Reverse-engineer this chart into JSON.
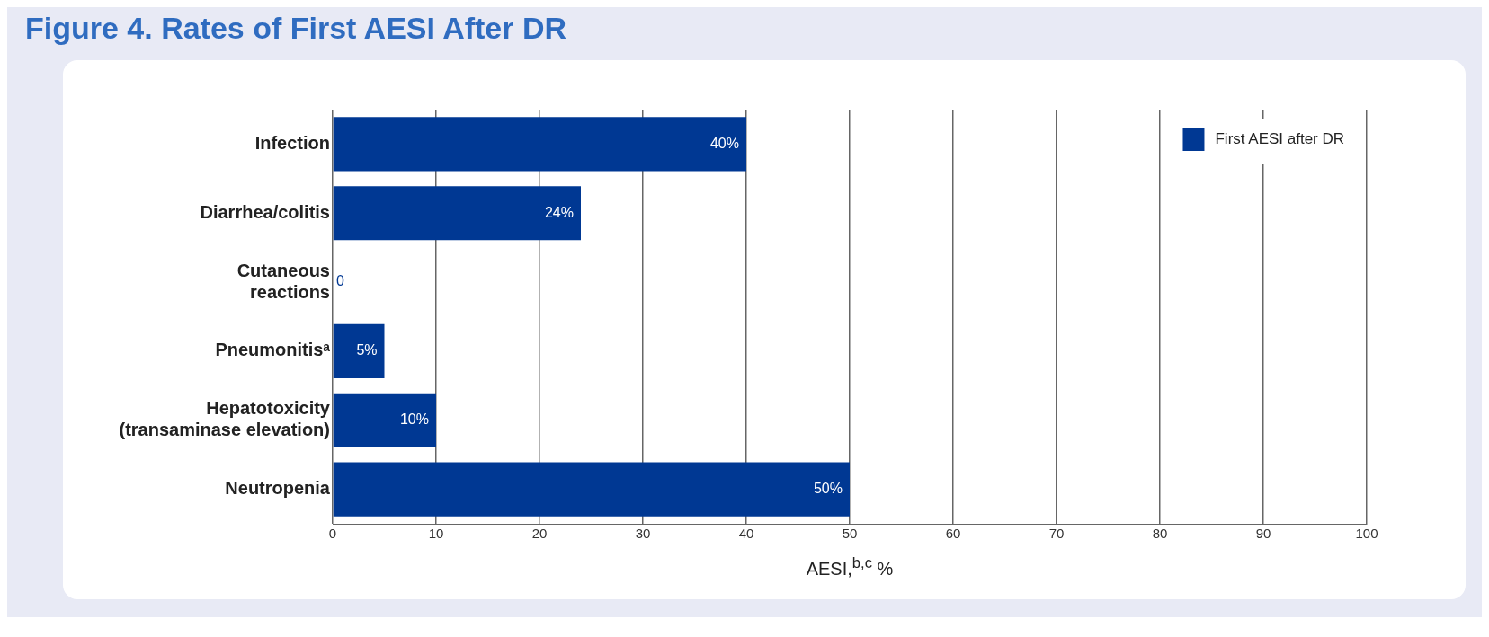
{
  "chart_data": {
    "type": "bar",
    "orientation": "horizontal",
    "title": "Figure 4. Rates of First AESI After DR",
    "xlabel": "AESI,$^{b,c}$ %",
    "categories": [
      "Infection",
      "Diarrhea/colitis",
      "Cutaneous\nreactions",
      "Pneumonitisᵃ",
      "Hepatotoxicity\n(transaminase elevation)",
      "Neutropenia"
    ],
    "series": [
      {
        "name": "First AESI after DR",
        "color": "#003893",
        "values": [
          40,
          24,
          0,
          5,
          10,
          50
        ],
        "value_labels": [
          "40%",
          "24%",
          "0",
          "5%",
          "10%",
          "50%"
        ]
      }
    ],
    "xlim": [
      0,
      100
    ],
    "xticks": [
      0,
      10,
      20,
      30,
      40,
      50,
      60,
      70,
      80,
      90,
      100
    ],
    "grid": "x",
    "legend": "top right"
  }
}
